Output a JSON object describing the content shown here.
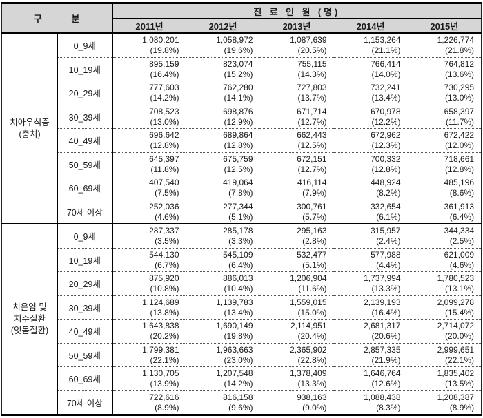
{
  "header": {
    "group_label": "구 분",
    "span_label": "진 료 인 원 (명)",
    "years": [
      "2011년",
      "2012년",
      "2013년",
      "2014년",
      "2015년"
    ]
  },
  "sections": [
    {
      "label_lines": [
        "치아우식증",
        "(충치)"
      ],
      "rows": [
        {
          "age": "0_9세",
          "values": [
            "1,080,201",
            "1,058,972",
            "1,087,639",
            "1,153,264",
            "1,226,774"
          ],
          "percents": [
            "(19.8%)",
            "(19.6%)",
            "(20.5%)",
            "(21.1%)",
            "(21.8%)"
          ]
        },
        {
          "age": "10_19세",
          "values": [
            "895,159",
            "823,074",
            "755,115",
            "766,414",
            "764,812"
          ],
          "percents": [
            "(16.4%)",
            "(15.2%)",
            "(14.3%)",
            "(14.0%)",
            "(13.6%)"
          ]
        },
        {
          "age": "20_29세",
          "values": [
            "777,603",
            "762,280",
            "727,803",
            "732,241",
            "730,295"
          ],
          "percents": [
            "(14.2%)",
            "(14.1%)",
            "(13.7%)",
            "(13.4%)",
            "(13.0%)"
          ]
        },
        {
          "age": "30_39세",
          "values": [
            "708,523",
            "698,876",
            "671,714",
            "670,978",
            "658,397"
          ],
          "percents": [
            "(13.0%)",
            "(12.9%)",
            "(12.7%)",
            "(12.2%)",
            "(11.7%)"
          ]
        },
        {
          "age": "40_49세",
          "values": [
            "696,642",
            "689,864",
            "662,443",
            "672,962",
            "672,422"
          ],
          "percents": [
            "(12.8%)",
            "(12.8%)",
            "(12.5%)",
            "(12.3%)",
            "(12.0%)"
          ]
        },
        {
          "age": "50_59세",
          "values": [
            "645,397",
            "675,759",
            "672,151",
            "700,332",
            "718,661"
          ],
          "percents": [
            "(11.8%)",
            "(12.5%)",
            "(12.7%)",
            "(12.8%)",
            "(12.8%)"
          ]
        },
        {
          "age": "60_69세",
          "values": [
            "407,540",
            "419,064",
            "416,114",
            "448,924",
            "485,196"
          ],
          "percents": [
            "(7.5%)",
            "(7.8%)",
            "(7.9%)",
            "(8.2%)",
            "(8.6%)"
          ]
        },
        {
          "age": "70세 이상",
          "values": [
            "252,036",
            "277,344",
            "300,761",
            "332,654",
            "361,913"
          ],
          "percents": [
            "(4.6%)",
            "(5.1%)",
            "(5.7%)",
            "(6.1%)",
            "(6.4%)"
          ]
        }
      ]
    },
    {
      "label_lines": [
        "치은염 및",
        "치주질환",
        "(잇몸질환)"
      ],
      "rows": [
        {
          "age": "0_9세",
          "values": [
            "287,337",
            "285,178",
            "295,163",
            "315,957",
            "344,334"
          ],
          "percents": [
            "(3.5%)",
            "(3.3%)",
            "(2.8%)",
            "(2.4%)",
            "(2.5%)"
          ]
        },
        {
          "age": "10_19세",
          "values": [
            "544,130",
            "545,109",
            "532,477",
            "577,988",
            "621,009"
          ],
          "percents": [
            "(6.7%)",
            "(6.4%)",
            "(5.1%)",
            "(4.4%)",
            "(4.6%)"
          ]
        },
        {
          "age": "20_29세",
          "values": [
            "875,920",
            "886,013",
            "1,206,904",
            "1,737,994",
            "1,780,523"
          ],
          "percents": [
            "(10.8%)",
            "(10.4%)",
            "(11.6%)",
            "(13.3%)",
            "(13.1%)"
          ]
        },
        {
          "age": "30_39세",
          "values": [
            "1,124,689",
            "1,139,783",
            "1,559,015",
            "2,139,193",
            "2,099,278"
          ],
          "percents": [
            "(13.8%)",
            "(13.4%)",
            "(15.0%)",
            "(16.4%)",
            "(15.4%)"
          ]
        },
        {
          "age": "40_49세",
          "values": [
            "1,643,838",
            "1,690,149",
            "2,114,951",
            "2,681,317",
            "2,714,072"
          ],
          "percents": [
            "(20.2%)",
            "(19.8%)",
            "(20.4%)",
            "(20.6%)",
            "(20.0%)"
          ]
        },
        {
          "age": "50_59세",
          "values": [
            "1,799,381",
            "1,963,663",
            "2,365,902",
            "2,857,335",
            "2,999,651"
          ],
          "percents": [
            "(22.1%)",
            "(23.0%)",
            "(22.8%)",
            "(21.9%)",
            "(22.1%)"
          ]
        },
        {
          "age": "60_69세",
          "values": [
            "1,130,705",
            "1,207,548",
            "1,378,409",
            "1,646,764",
            "1,835,402"
          ],
          "percents": [
            "(13.9%)",
            "(14.2%)",
            "(13.3%)",
            "(12.6%)",
            "(13.5%)"
          ]
        },
        {
          "age": "70세 이상",
          "values": [
            "722,616",
            "816,158",
            "938,163",
            "1,088,438",
            "1,208,387"
          ],
          "percents": [
            "(8.9%)",
            "(9.6%)",
            "(9.0%)",
            "(8.3%)",
            "(8.9%)"
          ]
        }
      ]
    }
  ],
  "colors": {
    "header_bg": "#d6d6d6",
    "border": "#000000",
    "text": "#1a1a1a"
  }
}
